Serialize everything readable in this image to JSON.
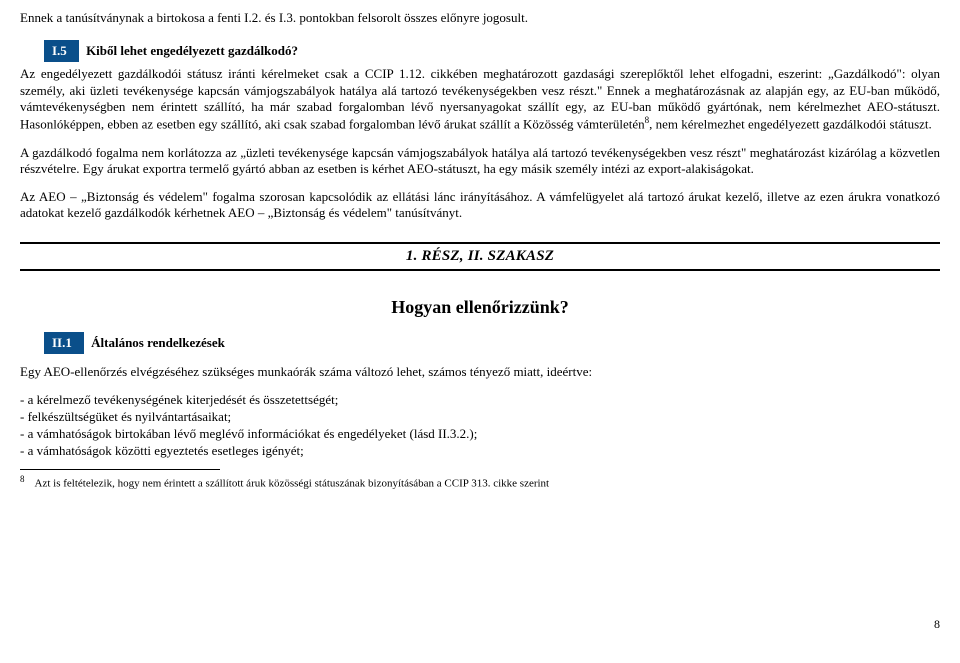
{
  "colors": {
    "box_bg": "#0a4f8a",
    "box_text": "#ffffff",
    "text": "#000000",
    "background": "#ffffff"
  },
  "lead_para": "Ennek a tanúsítványnak a birtokosa a fenti I.2. és I.3. pontokban felsorolt összes előnyre jogosult.",
  "sec_i5": {
    "label": "I.5",
    "title": "Kiből lehet engedélyezett gazdálkodó?"
  },
  "para1_a": "Az engedélyezett gazdálkodói státusz iránti kérelmeket csak a CCIP 1.12. cikkében meghatározott gazdasági szereplőktől lehet elfogadni, eszerint: „Gazdálkodó\": olyan személy, aki üzleti tevékenysége kapcsán vámjogszabályok hatálya alá tartozó tevékenységekben vesz részt.\" Ennek a meghatározásnak az alapján egy, az EU-ban működő, vámtevékenységben nem érintett szállító, ha már szabad forgalomban lévő nyersanyagokat szállít egy, az EU-ban működő gyártónak, nem kérelmezhet AEO-státuszt. Hasonlóképpen, ebben az esetben egy szállító, aki csak szabad forgalomban lévő árukat szállít a Közösség vámterületén",
  "para1_sup": "8",
  "para1_b": ", nem kérelmezhet engedélyezett gazdálkodói státuszt.",
  "para2": "A gazdálkodó fogalma nem korlátozza az „üzleti tevékenysége kapcsán vámjogszabályok hatálya alá tartozó tevékenységekben vesz részt\" meghatározást kizárólag a közvetlen részvételre. Egy árukat exportra termelő gyártó abban az esetben is kérhet AEO-státuszt, ha egy másik személy intézi az export-alakiságokat.",
  "para3": "Az AEO – „Biztonság és védelem\" fogalma szorosan kapcsolódik az ellátási lánc irányításához. A vámfelügyelet alá tartozó árukat kezelő, illetve az ezen árukra vonatkozó adatokat kezelő gazdálkodók kérhetnek AEO – „Biztonság és védelem\" tanúsítványt.",
  "band": {
    "part": "1. RÉSZ, II. ",
    "szakasz": "SZAKASZ"
  },
  "big_heading": "Hogyan ellenőrizzünk?",
  "sec_ii1": {
    "label": "II.1",
    "title": "Általános rendelkezések"
  },
  "para4": "Egy AEO-ellenőrzés elvégzéséhez szükséges munkaórák száma változó lehet, számos tényező miatt, ideértve:",
  "bullets": [
    "- a kérelmező tevékenységének kiterjedését és összetettségét;",
    "- felkészültségüket és nyilvántartásaikat;",
    "- a vámhatóságok birtokában lévő meglévő információkat és engedélyeket (lásd II.3.2.);",
    "- a vámhatóságok közötti egyeztetés esetleges igényét;"
  ],
  "footnote": {
    "num": "8",
    "text": "Azt is feltételezik, hogy nem érintett a szállított áruk közösségi státuszának bizonyításában a CCIP 313. cikke szerint"
  },
  "page_number": "8"
}
